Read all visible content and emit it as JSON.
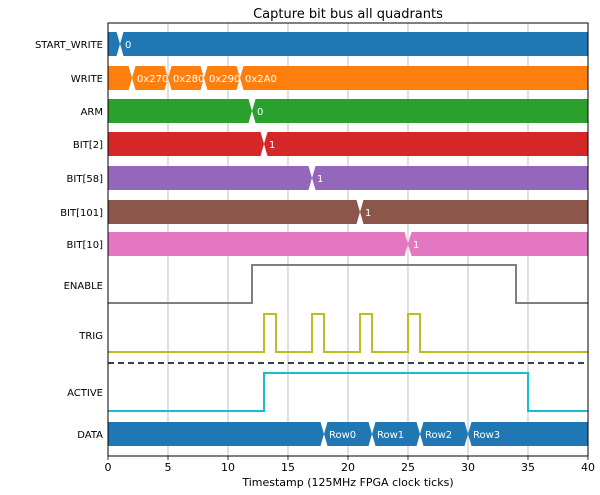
{
  "chart_data": {
    "type": "timing-diagram",
    "title": "Capture bit bus all quadrants",
    "xlabel": "Timestamp (125MHz FPGA clock ticks)",
    "xlim": [
      0,
      40
    ],
    "xticks": [
      0,
      5,
      10,
      15,
      20,
      25,
      30,
      35,
      40
    ],
    "grid": true,
    "buses": [
      {
        "name": "START_WRITE",
        "color": "#1f77b4",
        "segments": [
          {
            "start": 1,
            "label": "0"
          }
        ]
      },
      {
        "name": "WRITE",
        "color": "#ff7f0e",
        "segments": [
          {
            "start": 2,
            "label": "0x270"
          },
          {
            "start": 5,
            "label": "0x280"
          },
          {
            "start": 8,
            "label": "0x290"
          },
          {
            "start": 11,
            "label": "0x2A0"
          }
        ]
      },
      {
        "name": "ARM",
        "color": "#2ca02c",
        "segments": [
          {
            "start": 12,
            "label": "0"
          }
        ]
      },
      {
        "name": "BIT[2]",
        "color": "#d62728",
        "segments": [
          {
            "start": 13,
            "label": "1"
          }
        ]
      },
      {
        "name": "BIT[58]",
        "color": "#9467bd",
        "segments": [
          {
            "start": 17,
            "label": "1"
          }
        ]
      },
      {
        "name": "BIT[101]",
        "color": "#8c564b",
        "segments": [
          {
            "start": 21,
            "label": "1"
          }
        ]
      },
      {
        "name": "BIT[10]",
        "color": "#e377c2",
        "segments": [
          {
            "start": 25,
            "label": "1"
          }
        ]
      }
    ],
    "bits": [
      {
        "name": "ENABLE",
        "color": "#7f7f7f",
        "steps": [
          [
            0,
            0
          ],
          [
            12,
            1
          ],
          [
            34,
            0
          ],
          [
            40,
            0
          ]
        ]
      },
      {
        "name": "TRIG",
        "color": "#bcbd22",
        "steps": [
          [
            0,
            0
          ],
          [
            13,
            1
          ],
          [
            14,
            0
          ],
          [
            17,
            1
          ],
          [
            18,
            0
          ],
          [
            21,
            1
          ],
          [
            22,
            0
          ],
          [
            25,
            1
          ],
          [
            26,
            0
          ],
          [
            40,
            0
          ]
        ]
      },
      {
        "name": "ACTIVE",
        "color": "#17becf",
        "steps": [
          [
            0,
            0
          ],
          [
            13,
            1
          ],
          [
            35,
            0
          ],
          [
            40,
            0
          ]
        ]
      }
    ],
    "data_bus": {
      "name": "DATA",
      "color": "#1f77b4",
      "segments": [
        {
          "start": 18,
          "label": "Row0"
        },
        {
          "start": 22,
          "label": "Row1"
        },
        {
          "start": 26,
          "label": "Row2"
        },
        {
          "start": 30,
          "label": "Row3"
        }
      ]
    }
  }
}
